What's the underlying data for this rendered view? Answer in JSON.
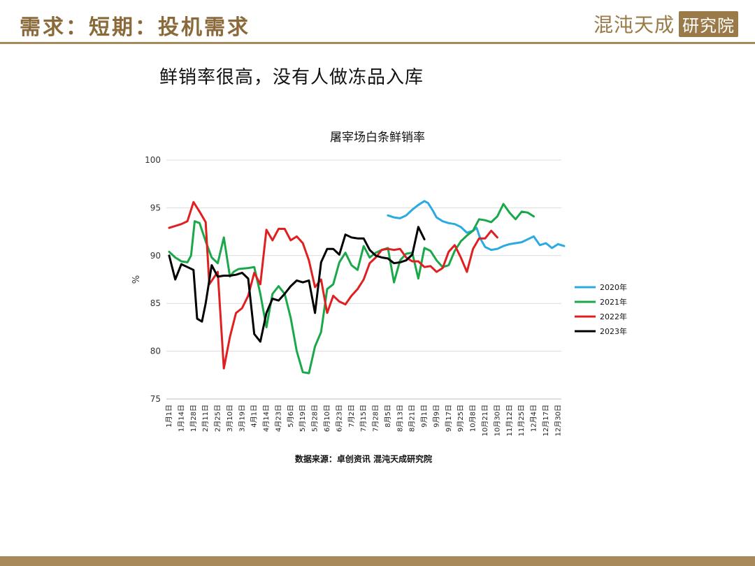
{
  "header": {
    "title": "需求：短期：投机需求",
    "brand_main": "混沌天成",
    "brand_box": "研究院"
  },
  "slide": {
    "subtitle": "鲜销率很高，没有人做冻品入库"
  },
  "chart_data": {
    "type": "line",
    "title": "屠宰场白条鲜销率",
    "ylabel": "%",
    "xlabel": "",
    "ylim": [
      75,
      100
    ],
    "yticks": [
      75,
      80,
      85,
      90,
      95,
      100
    ],
    "grid": true,
    "legend_position": "right",
    "source": "数据来源：卓创资讯 混沌天成研究院",
    "categories": [
      "1月1日",
      "1月14日",
      "1月28日",
      "2月11日",
      "2月25日",
      "3月10日",
      "3月19日",
      "4月1日",
      "4月14日",
      "4月23日",
      "5月6日",
      "5月19日",
      "5月28日",
      "6月10日",
      "6月23日",
      "7月2日",
      "7月15日",
      "7月28日",
      "8月5日",
      "8月13日",
      "8月21日",
      "9月1日",
      "9月9日",
      "9月17日",
      "9月25日",
      "10月8日",
      "10月21日",
      "10月30日",
      "11月12日",
      "11月25日",
      "12月4日",
      "12月17日",
      "12月30日"
    ],
    "series": [
      {
        "name": "2020年",
        "color": "#29abe2",
        "points": [
          [
            18,
            94.2
          ],
          [
            18.5,
            94.0
          ],
          [
            19,
            93.9
          ],
          [
            19.5,
            94.2
          ],
          [
            20,
            94.8
          ],
          [
            20.5,
            95.3
          ],
          [
            21,
            95.7
          ],
          [
            21.3,
            95.5
          ],
          [
            21.7,
            94.7
          ],
          [
            22,
            94.0
          ],
          [
            22.5,
            93.6
          ],
          [
            23,
            93.4
          ],
          [
            23.5,
            93.3
          ],
          [
            24,
            93.0
          ],
          [
            24.5,
            92.4
          ],
          [
            25,
            92.6
          ],
          [
            25.3,
            92.9
          ],
          [
            25.6,
            91.8
          ],
          [
            26,
            90.9
          ],
          [
            26.5,
            90.6
          ],
          [
            27,
            90.7
          ],
          [
            27.5,
            91.0
          ],
          [
            28,
            91.2
          ],
          [
            29,
            91.4
          ],
          [
            30,
            92.0
          ],
          [
            30.5,
            91.1
          ],
          [
            31,
            91.3
          ],
          [
            31.5,
            90.8
          ],
          [
            32,
            91.2
          ],
          [
            32.5,
            91.0
          ]
        ]
      },
      {
        "name": "2021年",
        "color": "#1aa84a",
        "points": [
          [
            0,
            90.4
          ],
          [
            0.5,
            89.8
          ],
          [
            1,
            89.4
          ],
          [
            1.5,
            89.3
          ],
          [
            1.8,
            90.0
          ],
          [
            2.1,
            93.6
          ],
          [
            2.5,
            93.4
          ],
          [
            3,
            91.5
          ],
          [
            3.5,
            89.8
          ],
          [
            4,
            89.2
          ],
          [
            4.5,
            91.9
          ],
          [
            5,
            87.8
          ],
          [
            5.3,
            88.3
          ],
          [
            5.7,
            88.6
          ],
          [
            6.5,
            88.7
          ],
          [
            7,
            88.8
          ],
          [
            7.5,
            86.0
          ],
          [
            8,
            82.5
          ],
          [
            8.5,
            86.0
          ],
          [
            9,
            86.8
          ],
          [
            9.5,
            86.0
          ],
          [
            10,
            83.5
          ],
          [
            10.5,
            80.0
          ],
          [
            11,
            77.8
          ],
          [
            11.5,
            77.7
          ],
          [
            12,
            80.5
          ],
          [
            12.5,
            82.0
          ],
          [
            13,
            86.5
          ],
          [
            13.5,
            87.0
          ],
          [
            14,
            89.3
          ],
          [
            14.5,
            90.3
          ],
          [
            15,
            89.0
          ],
          [
            15.5,
            88.5
          ],
          [
            16,
            91.0
          ],
          [
            16.5,
            89.8
          ],
          [
            17,
            90.3
          ],
          [
            17.5,
            90.6
          ],
          [
            18,
            90.8
          ],
          [
            18.5,
            87.2
          ],
          [
            19,
            89.5
          ],
          [
            19.5,
            90.2
          ],
          [
            20,
            90.3
          ],
          [
            20.5,
            87.6
          ],
          [
            21,
            90.8
          ],
          [
            21.5,
            90.5
          ],
          [
            22,
            89.5
          ],
          [
            22.5,
            88.8
          ],
          [
            23,
            89.0
          ],
          [
            23.5,
            90.5
          ],
          [
            24,
            91.5
          ],
          [
            24.5,
            92.1
          ],
          [
            25,
            92.6
          ],
          [
            25.5,
            93.8
          ],
          [
            26,
            93.7
          ],
          [
            26.5,
            93.5
          ],
          [
            27,
            94.1
          ],
          [
            27.5,
            95.4
          ],
          [
            28,
            94.5
          ],
          [
            28.5,
            93.8
          ],
          [
            29,
            94.6
          ],
          [
            29.5,
            94.5
          ],
          [
            30,
            94.1
          ]
        ]
      },
      {
        "name": "2022年",
        "color": "#e02020",
        "points": [
          [
            0,
            92.9
          ],
          [
            1,
            93.3
          ],
          [
            1.5,
            93.6
          ],
          [
            2,
            95.6
          ],
          [
            2.5,
            94.6
          ],
          [
            3,
            93.5
          ],
          [
            3.3,
            87.0
          ],
          [
            4,
            88.3
          ],
          [
            4.5,
            78.2
          ],
          [
            5,
            81.5
          ],
          [
            5.5,
            84.0
          ],
          [
            6,
            84.5
          ],
          [
            6.5,
            85.8
          ],
          [
            7,
            88.2
          ],
          [
            7.5,
            87.0
          ],
          [
            8,
            92.7
          ],
          [
            8.5,
            91.6
          ],
          [
            9,
            92.8
          ],
          [
            9.5,
            92.8
          ],
          [
            10,
            91.6
          ],
          [
            10.5,
            92.0
          ],
          [
            11,
            91.3
          ],
          [
            11.5,
            89.5
          ],
          [
            12,
            86.7
          ],
          [
            12.5,
            87.5
          ],
          [
            13,
            84.0
          ],
          [
            13.5,
            85.8
          ],
          [
            14,
            85.2
          ],
          [
            14.5,
            84.9
          ],
          [
            15,
            85.8
          ],
          [
            15.5,
            86.5
          ],
          [
            16,
            87.5
          ],
          [
            16.5,
            89.2
          ],
          [
            17,
            89.8
          ],
          [
            17.5,
            90.6
          ],
          [
            18,
            90.7
          ],
          [
            18.5,
            90.6
          ],
          [
            19,
            90.7
          ],
          [
            19.5,
            89.8
          ],
          [
            20,
            89.4
          ],
          [
            20.5,
            89.4
          ],
          [
            21,
            88.8
          ],
          [
            21.5,
            88.9
          ],
          [
            22,
            88.3
          ],
          [
            22.5,
            88.7
          ],
          [
            23,
            90.4
          ],
          [
            23.5,
            91.1
          ],
          [
            24,
            89.8
          ],
          [
            24.5,
            88.3
          ],
          [
            25,
            90.7
          ],
          [
            25.5,
            91.8
          ],
          [
            26,
            91.8
          ],
          [
            26.5,
            92.6
          ],
          [
            27,
            91.9
          ]
        ]
      },
      {
        "name": "2023年",
        "color": "#000000",
        "points": [
          [
            0,
            90.0
          ],
          [
            0.5,
            87.5
          ],
          [
            1,
            89.1
          ],
          [
            1.5,
            88.8
          ],
          [
            2,
            88.5
          ],
          [
            2.3,
            83.4
          ],
          [
            2.7,
            83.1
          ],
          [
            3,
            85.0
          ],
          [
            3.5,
            89.0
          ],
          [
            4,
            87.8
          ],
          [
            4.5,
            87.9
          ],
          [
            5,
            87.9
          ],
          [
            5.5,
            88.0
          ],
          [
            6,
            88.2
          ],
          [
            6.5,
            87.6
          ],
          [
            7,
            81.8
          ],
          [
            7.5,
            81.0
          ],
          [
            8,
            84.0
          ],
          [
            8.5,
            85.5
          ],
          [
            9,
            85.3
          ],
          [
            9.5,
            86.0
          ],
          [
            10,
            86.8
          ],
          [
            10.5,
            87.4
          ],
          [
            11,
            87.2
          ],
          [
            11.5,
            87.4
          ],
          [
            12,
            84.0
          ],
          [
            12.5,
            89.3
          ],
          [
            13,
            90.7
          ],
          [
            13.5,
            90.7
          ],
          [
            14,
            90.1
          ],
          [
            14.5,
            92.2
          ],
          [
            15,
            91.9
          ],
          [
            15.5,
            91.8
          ],
          [
            16,
            91.8
          ],
          [
            16.5,
            90.6
          ],
          [
            17,
            90.0
          ],
          [
            17.5,
            89.8
          ],
          [
            18,
            89.7
          ],
          [
            18.5,
            89.2
          ],
          [
            19,
            89.3
          ],
          [
            19.5,
            89.5
          ],
          [
            20,
            90.1
          ],
          [
            20.5,
            93.0
          ],
          [
            21,
            91.7
          ]
        ]
      }
    ]
  }
}
